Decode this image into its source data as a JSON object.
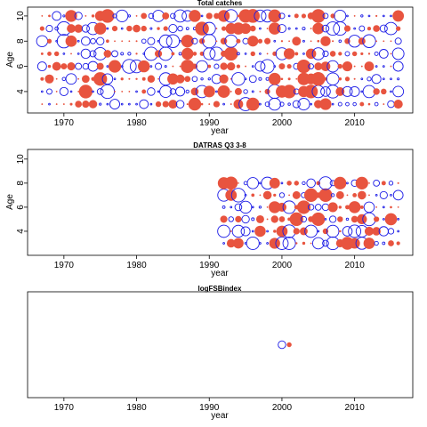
{
  "colors": {
    "positive": "#e8543f",
    "negative": "#1a1ae6",
    "frame": "#000000"
  },
  "chart_data": [
    {
      "type": "bubble",
      "title": "Total catches",
      "xlabel": "year",
      "ylabel": "Age",
      "xlim": [
        1965,
        2018
      ],
      "ylim": [
        2.3,
        10.7
      ],
      "xticks": [
        1970,
        1980,
        1990,
        2000,
        2010
      ],
      "yticks": [
        4,
        6,
        8,
        10
      ],
      "years": [
        1967,
        2016
      ],
      "ages": [
        3,
        10
      ],
      "seed": 11,
      "density": 1.0
    },
    {
      "type": "bubble",
      "title": "DATRAS Q3 3-8",
      "xlabel": "year",
      "ylabel": "Age",
      "xlim": [
        1965,
        2018
      ],
      "ylim": [
        2.0,
        10.8
      ],
      "xticks": [
        1970,
        1980,
        1990,
        2000,
        2010
      ],
      "yticks": [
        4,
        6,
        8,
        10
      ],
      "years": [
        1992,
        2016
      ],
      "ages": [
        3,
        8
      ],
      "seed": 29,
      "density": 1.0
    },
    {
      "type": "bubble",
      "title": "logFSBindex",
      "xlabel": "year",
      "ylabel": "",
      "xlim": [
        1965,
        2018
      ],
      "ylim": [
        0,
        1
      ],
      "xticks": [
        1970,
        1980,
        1990,
        2000,
        2010
      ],
      "yticks": [],
      "points": [
        {
          "year": 2000,
          "y": 0.5,
          "size": 0.55,
          "sign": "neg"
        },
        {
          "year": 2001,
          "y": 0.5,
          "size": 0.35,
          "sign": "pos"
        }
      ]
    }
  ]
}
